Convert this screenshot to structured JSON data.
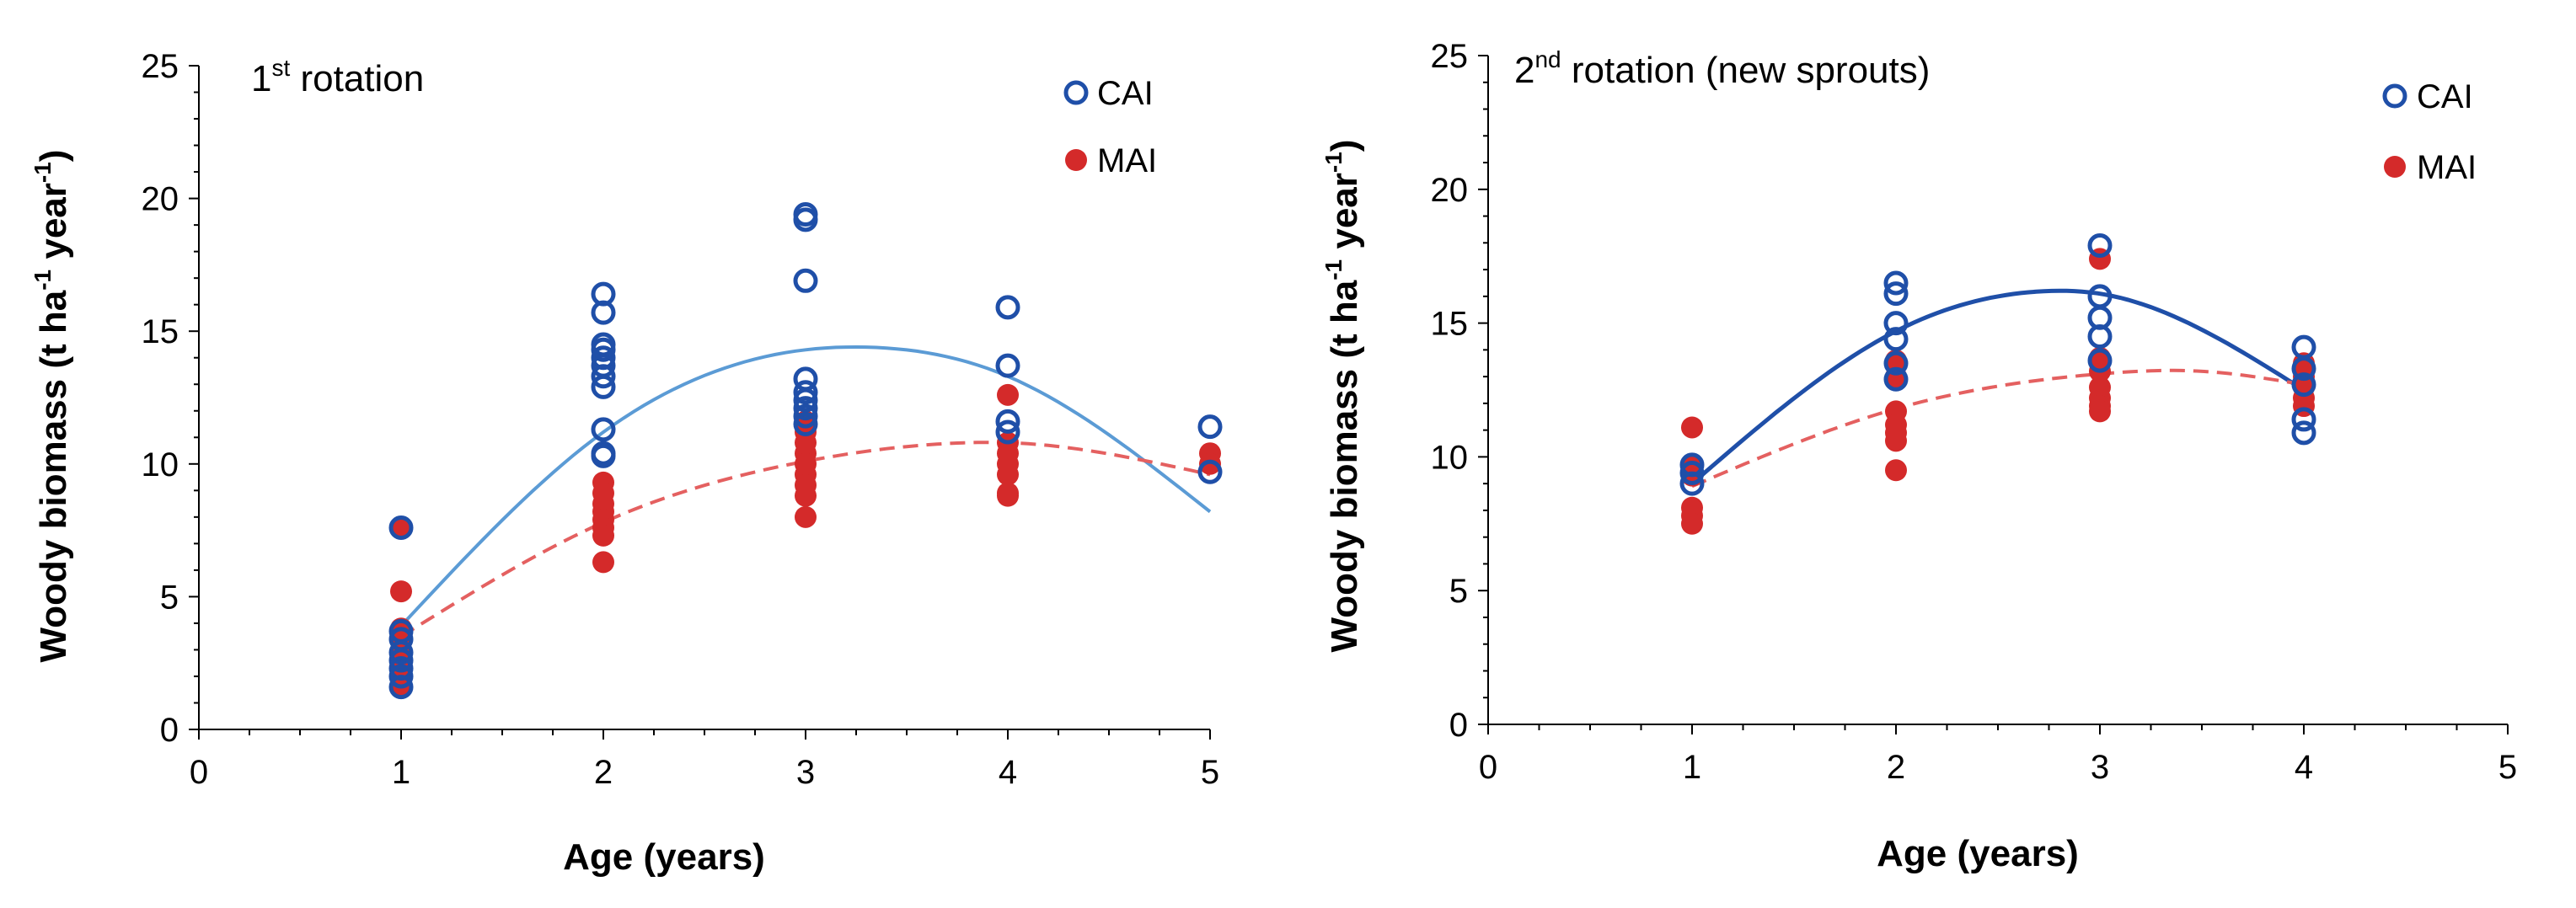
{
  "colors": {
    "cai_marker": "#1f4fa8",
    "mai_marker": "#d42a2a",
    "cai_fit_left": "#5b9bd5",
    "cai_fit_right": "#1f4fa8",
    "mai_fit": "#e46060"
  },
  "chart_data": [
    {
      "type": "scatter",
      "title_main": "1",
      "title_sup": "st",
      "title_rest": " rotation",
      "xlabel": "Age (years)",
      "ylabel_main": "Woody biomass (t ha",
      "ylabel_sup1": "-1",
      "ylabel_mid": " year",
      "ylabel_sup2": "-1",
      "ylabel_end": ")",
      "xlim": [
        0,
        5
      ],
      "ylim": [
        0,
        25
      ],
      "xticks": [
        "0",
        "1",
        "2",
        "3",
        "4",
        "5"
      ],
      "yticks": [
        "0",
        "5",
        "10",
        "15",
        "20",
        "25"
      ],
      "legend": {
        "placement": "top-right",
        "entries": [
          "CAI",
          "MAI"
        ]
      },
      "grid": false,
      "series": [
        {
          "name": "CAI",
          "marker": "open-circle",
          "points": [
            [
              1,
              7.6
            ],
            [
              1,
              3.7
            ],
            [
              1,
              3.4
            ],
            [
              1,
              2.9
            ],
            [
              1,
              2.6
            ],
            [
              1,
              2.3
            ],
            [
              1,
              2.0
            ],
            [
              1,
              1.6
            ],
            [
              2,
              16.4
            ],
            [
              2,
              15.7
            ],
            [
              2,
              14.5
            ],
            [
              2,
              14.3
            ],
            [
              2,
              14.0
            ],
            [
              2,
              13.7
            ],
            [
              2,
              13.3
            ],
            [
              2,
              12.9
            ],
            [
              2,
              11.3
            ],
            [
              2,
              10.4
            ],
            [
              2,
              10.3
            ],
            [
              3,
              19.4
            ],
            [
              3,
              19.2
            ],
            [
              3,
              16.9
            ],
            [
              3,
              13.2
            ],
            [
              3,
              12.7
            ],
            [
              3,
              12.4
            ],
            [
              3,
              12.1
            ],
            [
              3,
              11.8
            ],
            [
              3,
              11.5
            ],
            [
              4,
              15.9
            ],
            [
              4,
              13.7
            ],
            [
              4,
              11.6
            ],
            [
              4,
              11.2
            ],
            [
              5,
              11.4
            ],
            [
              5,
              9.7
            ]
          ]
        },
        {
          "name": "MAI",
          "marker": "filled-circle",
          "points": [
            [
              1,
              7.6
            ],
            [
              1,
              5.2
            ],
            [
              1,
              3.8
            ],
            [
              1,
              3.5
            ],
            [
              1,
              3.0
            ],
            [
              1,
              2.7
            ],
            [
              1,
              2.4
            ],
            [
              1,
              2.1
            ],
            [
              1,
              1.8
            ],
            [
              1,
              1.6
            ],
            [
              2,
              9.3
            ],
            [
              2,
              8.9
            ],
            [
              2,
              8.5
            ],
            [
              2,
              8.2
            ],
            [
              2,
              7.9
            ],
            [
              2,
              7.6
            ],
            [
              2,
              7.3
            ],
            [
              2,
              6.3
            ],
            [
              3,
              11.6
            ],
            [
              3,
              11.2
            ],
            [
              3,
              10.8
            ],
            [
              3,
              10.4
            ],
            [
              3,
              10.0
            ],
            [
              3,
              9.6
            ],
            [
              3,
              9.2
            ],
            [
              3,
              8.8
            ],
            [
              3,
              8.0
            ],
            [
              4,
              12.6
            ],
            [
              4,
              10.8
            ],
            [
              4,
              10.4
            ],
            [
              4,
              10.0
            ],
            [
              4,
              9.6
            ],
            [
              4,
              8.9
            ],
            [
              4,
              8.8
            ],
            [
              5,
              10.4
            ],
            [
              5,
              10.0
            ]
          ]
        }
      ],
      "fits": [
        {
          "name": "CAI",
          "style": "solid",
          "x_range": [
            1,
            5
          ],
          "points": [
            [
              1,
              3.9
            ],
            [
              2,
              11.2
            ],
            [
              3,
              14.3
            ],
            [
              3.3,
              14.4
            ],
            [
              4,
              13.3
            ],
            [
              5,
              8.2
            ]
          ]
        },
        {
          "name": "MAI",
          "style": "dashed",
          "x_range": [
            1,
            5
          ],
          "points": [
            [
              1,
              3.5
            ],
            [
              2,
              7.8
            ],
            [
              3,
              10.1
            ],
            [
              3.8,
              10.8
            ],
            [
              4,
              10.8
            ],
            [
              5,
              9.6
            ]
          ]
        }
      ]
    },
    {
      "type": "scatter",
      "title_main": "2",
      "title_sup": "nd",
      "title_rest": " rotation (new sprouts)",
      "xlabel": "Age (years)",
      "ylabel_main": "Woody biomass (t ha",
      "ylabel_sup1": "-1",
      "ylabel_mid": " year",
      "ylabel_sup2": "-1",
      "ylabel_end": ")",
      "xlim": [
        0,
        5
      ],
      "ylim": [
        0,
        25
      ],
      "xticks": [
        "0",
        "1",
        "2",
        "3",
        "4",
        "5"
      ],
      "yticks": [
        "0",
        "5",
        "10",
        "15",
        "20",
        "25"
      ],
      "legend": {
        "placement": "top-right",
        "entries": [
          "CAI",
          "MAI"
        ]
      },
      "grid": false,
      "series": [
        {
          "name": "CAI",
          "marker": "open-circle",
          "points": [
            [
              1,
              9.7
            ],
            [
              1,
              9.4
            ],
            [
              1,
              9.0
            ],
            [
              2,
              16.5
            ],
            [
              2,
              16.1
            ],
            [
              2,
              15.0
            ],
            [
              2,
              14.4
            ],
            [
              2,
              13.5
            ],
            [
              2,
              12.9
            ],
            [
              3,
              17.9
            ],
            [
              3,
              16.0
            ],
            [
              3,
              15.2
            ],
            [
              3,
              14.5
            ],
            [
              3,
              13.6
            ],
            [
              4,
              14.1
            ],
            [
              4,
              13.3
            ],
            [
              4,
              12.7
            ],
            [
              4,
              11.4
            ],
            [
              4,
              10.9
            ]
          ]
        },
        {
          "name": "MAI",
          "marker": "filled-circle",
          "points": [
            [
              1,
              11.1
            ],
            [
              1,
              9.7
            ],
            [
              1,
              9.3
            ],
            [
              1,
              8.1
            ],
            [
              1,
              7.8
            ],
            [
              1,
              7.5
            ],
            [
              2,
              13.6
            ],
            [
              2,
              13.0
            ],
            [
              2,
              11.7
            ],
            [
              2,
              11.2
            ],
            [
              2,
              10.9
            ],
            [
              2,
              10.6
            ],
            [
              2,
              9.5
            ],
            [
              3,
              17.4
            ],
            [
              3,
              13.7
            ],
            [
              3,
              13.2
            ],
            [
              3,
              12.6
            ],
            [
              3,
              12.2
            ],
            [
              3,
              11.9
            ],
            [
              3,
              11.7
            ],
            [
              4,
              13.5
            ],
            [
              4,
              13.0
            ],
            [
              4,
              12.6
            ],
            [
              4,
              12.2
            ],
            [
              4,
              11.9
            ]
          ]
        }
      ],
      "fits": [
        {
          "name": "CAI",
          "style": "solid",
          "x_range": [
            1,
            4
          ],
          "points": [
            [
              1,
              9.0
            ],
            [
              2,
              14.7
            ],
            [
              2.75,
              16.2
            ],
            [
              3,
              16.1
            ],
            [
              4,
              12.5
            ]
          ]
        },
        {
          "name": "MAI",
          "style": "dashed",
          "x_range": [
            1,
            4
          ],
          "points": [
            [
              1,
              8.9
            ],
            [
              2,
              11.8
            ],
            [
              3,
              13.1
            ],
            [
              3.5,
              13.2
            ],
            [
              4,
              12.7
            ]
          ]
        }
      ]
    }
  ]
}
